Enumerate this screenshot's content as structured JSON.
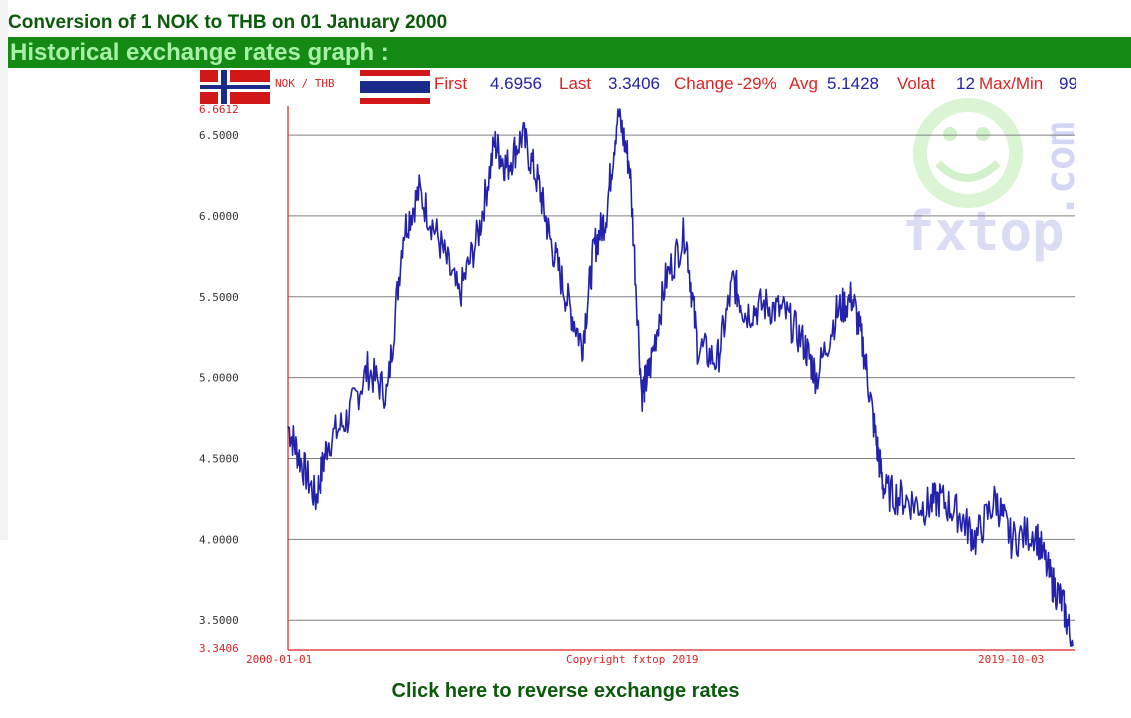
{
  "page": {
    "conversion_title": "Conversion of 1 NOK to THB on 01 January 2000",
    "graph_header": "Historical exchange rates graph :",
    "reverse_link": "Click here to reverse exchange rates"
  },
  "stats": {
    "pair_label": "NOK / THB",
    "first_label": "First",
    "first_value": "4.6956",
    "last_label": "Last",
    "last_value": "3.3406",
    "change_label": "Change",
    "change_value": "-29%",
    "avg_label": "Avg",
    "avg_value": "5.1428",
    "volat_label": "Volat",
    "volat_value": "12",
    "maxmin_label": "Max/Min",
    "maxmin_value": "99"
  },
  "watermark": {
    "text": "fxtop",
    "domain": ".com"
  },
  "colors": {
    "line": "#2222aa",
    "axis": "#dd2222",
    "grid": "#808080",
    "label_red": "#dd2222",
    "label_blue": "#2222aa",
    "header_bg": "#148a14",
    "title_green": "#0a5a0a"
  },
  "chart_data": {
    "type": "line",
    "x_start_label": "2000-01-01",
    "x_end_label": "2019-10-03",
    "x_center_label": "Copyright fxtop 2019",
    "ymax_label": "6.6612",
    "ymin_label": "3.3406",
    "ylim": [
      3.3406,
      6.6612
    ],
    "yticks": [
      "6.5000",
      "6.0000",
      "5.5000",
      "5.0000",
      "4.5000",
      "4.0000",
      "3.5000"
    ],
    "grid": true,
    "series": [
      {
        "x": [
          2000.0,
          2000.3,
          2000.7,
          2001.0,
          2001.5,
          2002.0,
          2002.5,
          2002.9,
          2003.3,
          2003.8,
          2004.3,
          2004.8,
          2005.2,
          2005.5,
          2005.9,
          2006.3,
          2006.6,
          2007.0,
          2007.4,
          2007.7,
          2008.0,
          2008.3,
          2008.6,
          2008.9,
          2009.1,
          2009.5,
          2010.0,
          2010.3,
          2010.8,
          2011.2,
          2011.5,
          2012.0,
          2012.5,
          2013.0,
          2013.3,
          2013.8,
          2014.2,
          2014.5,
          2014.8,
          2015.0,
          2015.5,
          2016.0,
          2016.4,
          2016.9,
          2017.3,
          2017.8,
          2018.2,
          2018.8,
          2019.2,
          2019.5,
          2019.75
        ],
        "values": [
          4.7,
          4.5,
          4.25,
          4.6,
          4.75,
          5.05,
          4.9,
          5.9,
          6.15,
          5.85,
          5.5,
          5.9,
          6.45,
          6.3,
          6.5,
          6.2,
          5.85,
          5.5,
          5.2,
          5.8,
          6.0,
          6.65,
          6.3,
          4.9,
          5.05,
          5.6,
          5.9,
          5.2,
          5.1,
          5.6,
          5.4,
          5.45,
          5.4,
          5.2,
          5.0,
          5.4,
          5.5,
          5.15,
          4.6,
          4.3,
          4.25,
          4.2,
          4.25,
          4.15,
          4.0,
          4.25,
          4.0,
          4.05,
          3.75,
          3.6,
          3.34
        ]
      }
    ]
  }
}
